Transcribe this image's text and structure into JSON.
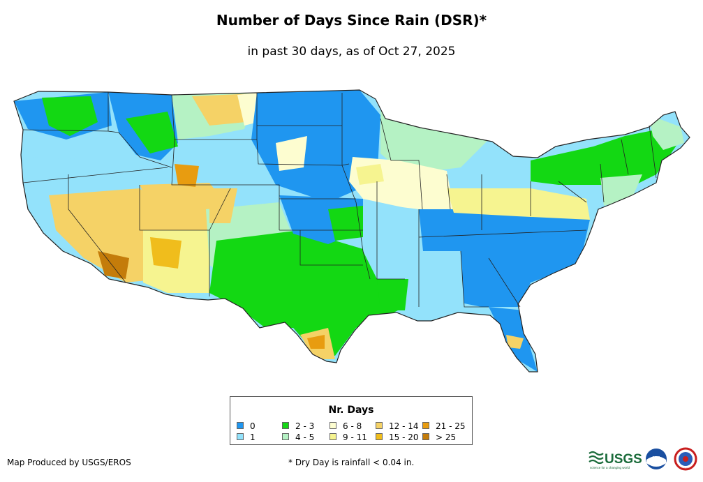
{
  "title": "Number of Days Since Rain (DSR)*",
  "subtitle": "in past 30 days, as of Oct 27, 2025",
  "legend": {
    "title": "Nr. Days",
    "items": [
      {
        "label": "0",
        "color": "#1f96f0"
      },
      {
        "label": "1",
        "color": "#92e2fb"
      },
      {
        "label": "2 - 3",
        "color": "#13d813"
      },
      {
        "label": "4 - 5",
        "color": "#b5f2c4"
      },
      {
        "label": "6 - 8",
        "color": "#fdfdd0"
      },
      {
        "label": "9 - 11",
        "color": "#f6f490"
      },
      {
        "label": "12 - 14",
        "color": "#f5d266"
      },
      {
        "label": "15 - 20",
        "color": "#f0bd1c"
      },
      {
        "label": "21 - 25",
        "color": "#e89c10"
      },
      {
        "label": "> 25",
        "color": "#c47c0a"
      }
    ]
  },
  "credit": "Map Produced by USGS/EROS",
  "footnote": "* Dry Day is rainfall < 0.04 in.",
  "logos": {
    "usgs": "USGS",
    "usgs_tagline": "science for a changing world",
    "noaa": "noaa",
    "nws": "NWS"
  }
}
